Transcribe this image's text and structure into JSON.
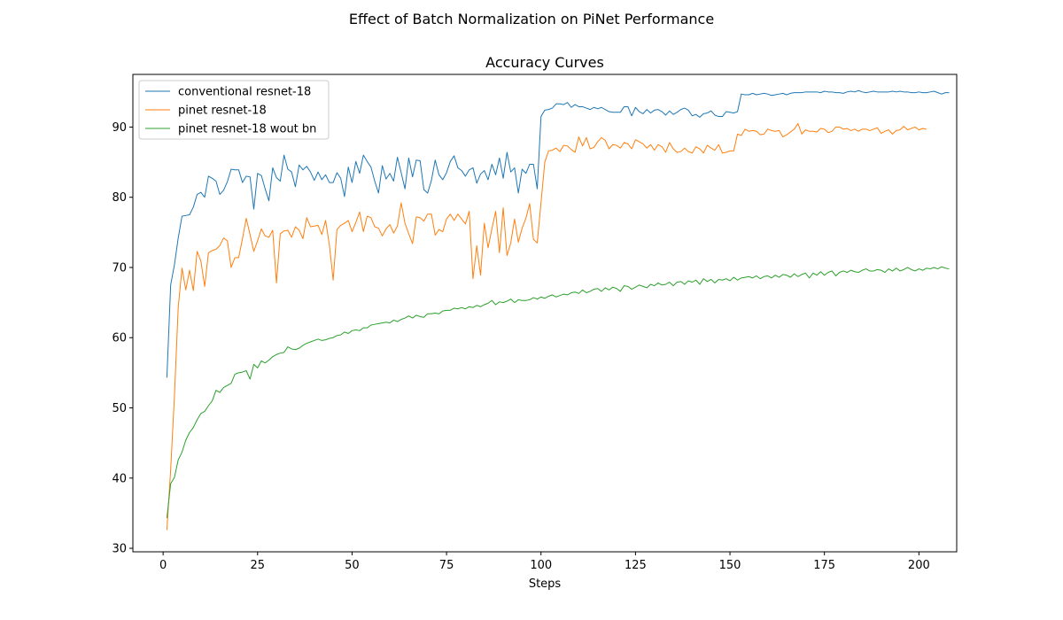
{
  "figure": {
    "suptitle": "Effect of Batch Normalization on PiNet Performance"
  },
  "chart_data": {
    "type": "line",
    "title": "Accuracy Curves",
    "xlabel": "Steps",
    "ylabel": "",
    "xlim": [
      -8,
      210
    ],
    "ylim": [
      29.5,
      97.5
    ],
    "xticks": [
      0,
      25,
      50,
      75,
      100,
      125,
      150,
      175,
      200
    ],
    "yticks": [
      30,
      40,
      50,
      60,
      70,
      80,
      90
    ],
    "grid": false,
    "legend_position": "upper left",
    "x_start": 1,
    "x_step": 1,
    "series": [
      {
        "name": "conventional resnet-18",
        "color": "#1f77b4",
        "values": [
          54.3,
          67.5,
          70.4,
          74.2,
          77.3,
          77.4,
          77.5,
          78.6,
          80.4,
          80.7,
          80.0,
          83.0,
          82.7,
          82.3,
          80.4,
          81.0,
          82.2,
          84.0,
          83.9,
          83.9,
          82.1,
          83.0,
          82.9,
          78.3,
          83.4,
          83.1,
          81.2,
          79.5,
          84.2,
          82.8,
          82.3,
          86.0,
          84.0,
          83.6,
          81.5,
          84.6,
          83.9,
          84.4,
          83.6,
          82.4,
          83.6,
          82.5,
          83.2,
          82.1,
          82.1,
          83.5,
          82.7,
          80.1,
          84.3,
          82.1,
          85.1,
          83.4,
          86.0,
          85.1,
          84.3,
          82.3,
          80.6,
          84.5,
          82.6,
          83.4,
          82.3,
          85.7,
          83.5,
          81.2,
          85.6,
          82.9,
          85.3,
          85.2,
          81.1,
          80.6,
          82.4,
          85.3,
          83.2,
          82.5,
          83.5,
          85.1,
          85.9,
          84.2,
          83.8,
          83.0,
          83.9,
          84.2,
          82.0,
          83.3,
          83.8,
          82.5,
          84.7,
          83.2,
          85.6,
          82.7,
          86.4,
          83.6,
          84.2,
          80.6,
          84.0,
          83.4,
          84.7,
          84.7,
          81.2,
          91.5,
          92.4,
          92.5,
          92.7,
          93.3,
          93.3,
          93.2,
          93.5,
          92.8,
          93.2,
          92.9,
          92.9,
          92.7,
          92.5,
          92.8,
          92.6,
          92.8,
          92.5,
          92.2,
          92.1,
          92.1,
          92.1,
          92.9,
          92.9,
          91.6,
          92.8,
          92.2,
          91.9,
          92.5,
          92.0,
          92.4,
          92.5,
          92.2,
          91.7,
          92.3,
          91.8,
          92.1,
          92.5,
          92.7,
          92.4,
          91.6,
          91.8,
          91.4,
          91.9,
          92.0,
          92.3,
          91.7,
          91.5,
          91.5,
          92.2,
          92.1,
          92.0,
          92.2,
          94.7,
          94.6,
          94.6,
          94.8,
          94.6,
          94.7,
          94.8,
          94.7,
          94.5,
          94.6,
          94.7,
          94.8,
          94.6,
          94.8,
          94.9,
          94.9,
          94.9,
          95.0,
          95.0,
          95.0,
          95.0,
          94.9,
          95.1,
          95.0,
          95.0,
          94.9,
          94.9,
          94.8,
          95.0,
          95.1,
          95.0,
          95.2,
          95.0,
          94.9,
          95.0,
          95.1,
          95.0,
          95.0,
          95.0,
          95.0,
          95.1,
          95.0,
          95.1,
          95.0,
          95.0,
          94.9,
          94.9,
          95.0,
          94.9,
          94.9,
          95.0,
          95.1,
          94.9,
          94.7,
          94.9,
          94.9
        ]
      },
      {
        "name": "pinet resnet-18",
        "color": "#ff7f0e",
        "values": [
          32.6,
          41.2,
          51.7,
          64.3,
          69.9,
          66.8,
          69.6,
          66.7,
          72.3,
          70.9,
          67.3,
          72.1,
          72.4,
          72.6,
          73.1,
          74.2,
          73.8,
          70.0,
          71.4,
          71.4,
          74.1,
          77.0,
          74.7,
          72.3,
          73.8,
          75.5,
          74.5,
          74.3,
          75.3,
          67.8,
          74.8,
          75.2,
          75.3,
          74.3,
          75.8,
          75.3,
          74.1,
          77.1,
          75.8,
          75.9,
          76.0,
          74.7,
          76.7,
          73.2,
          68.2,
          75.4,
          76.0,
          76.3,
          76.7,
          75.1,
          76.4,
          77.9,
          75.1,
          77.3,
          77.1,
          75.8,
          75.6,
          74.5,
          75.5,
          76.1,
          74.9,
          75.9,
          79.2,
          76.3,
          74.8,
          73.4,
          77.2,
          77.1,
          76.6,
          77.6,
          77.6,
          74.6,
          75.4,
          75.1,
          76.9,
          77.6,
          76.7,
          77.6,
          76.9,
          76.2,
          78.0,
          68.4,
          73.1,
          68.9,
          76.3,
          72.8,
          75.5,
          78.0,
          72.1,
          78.5,
          71.7,
          73.5,
          76.9,
          73.6,
          75.6,
          77.0,
          79.1,
          74.0,
          73.5,
          79.2,
          85.0,
          86.6,
          86.7,
          87.0,
          86.5,
          87.4,
          87.3,
          86.8,
          86.4,
          88.6,
          87.3,
          88.5,
          86.9,
          87.1,
          87.9,
          88.5,
          88.1,
          86.9,
          87.5,
          87.4,
          87.0,
          87.8,
          87.6,
          86.9,
          88.2,
          87.9,
          87.6,
          87.0,
          87.5,
          86.7,
          87.5,
          87.2,
          86.4,
          87.8,
          86.9,
          86.4,
          86.5,
          87.0,
          86.5,
          86.3,
          87.2,
          86.9,
          86.3,
          87.4,
          87.0,
          86.7,
          87.5,
          86.3,
          86.4,
          86.6,
          86.6,
          89.0,
          88.8,
          89.7,
          89.4,
          89.5,
          89.4,
          88.9,
          89.0,
          89.7,
          89.5,
          89.4,
          89.5,
          88.6,
          88.9,
          89.3,
          89.7,
          90.5,
          89.0,
          89.6,
          89.4,
          89.4,
          89.3,
          89.8,
          89.7,
          89.2,
          89.4,
          90.0,
          90.0,
          89.7,
          89.8,
          89.5,
          89.7,
          89.4,
          89.7,
          89.7,
          89.5,
          89.7,
          89.9,
          89.1,
          89.4,
          89.6,
          89.0,
          89.5,
          89.6,
          90.1,
          89.6,
          89.8,
          90.0,
          89.6,
          89.8,
          89.7
        ]
      },
      {
        "name": "pinet resnet-18 wout bn",
        "color": "#2ca02c",
        "values": [
          34.3,
          39.2,
          40.1,
          42.6,
          43.7,
          45.4,
          46.5,
          47.2,
          48.3,
          49.2,
          49.5,
          50.3,
          51.0,
          52.5,
          52.2,
          52.9,
          53.2,
          53.5,
          54.8,
          55.0,
          55.1,
          55.3,
          54.1,
          56.2,
          55.7,
          56.7,
          56.4,
          56.8,
          57.3,
          57.6,
          57.8,
          57.9,
          58.7,
          58.4,
          58.3,
          58.5,
          58.9,
          59.2,
          59.4,
          59.6,
          59.8,
          59.6,
          59.7,
          59.9,
          60.0,
          60.3,
          60.4,
          60.8,
          60.6,
          61.0,
          61.1,
          61.0,
          61.4,
          61.4,
          61.8,
          61.9,
          62.0,
          62.1,
          62.2,
          62.1,
          62.5,
          62.3,
          62.6,
          62.8,
          63.1,
          62.8,
          63.2,
          63.0,
          62.9,
          63.4,
          63.4,
          63.5,
          63.4,
          63.8,
          63.9,
          63.9,
          64.2,
          64.1,
          64.3,
          64.1,
          64.4,
          64.3,
          64.6,
          64.4,
          64.7,
          64.9,
          65.3,
          64.7,
          65.1,
          65.0,
          65.2,
          65.5,
          65.0,
          65.4,
          65.3,
          65.3,
          65.4,
          65.7,
          65.5,
          65.8,
          65.6,
          65.9,
          66.1,
          65.8,
          66.0,
          66.2,
          66.1,
          66.4,
          66.5,
          66.3,
          66.8,
          66.4,
          66.6,
          66.9,
          67.0,
          66.6,
          67.1,
          66.8,
          67.2,
          67.0,
          66.6,
          67.4,
          67.3,
          66.9,
          67.2,
          67.5,
          67.3,
          67.1,
          67.6,
          67.4,
          67.8,
          67.5,
          67.6,
          67.9,
          67.4,
          67.9,
          68.0,
          67.6,
          68.1,
          67.9,
          68.2,
          67.6,
          68.4,
          68.0,
          68.3,
          67.8,
          68.3,
          68.2,
          68.4,
          68.1,
          68.6,
          68.2,
          68.5,
          68.6,
          68.7,
          68.5,
          68.8,
          68.4,
          68.7,
          68.8,
          68.5,
          68.9,
          68.6,
          69.0,
          68.9,
          68.6,
          69.1,
          68.7,
          69.0,
          69.2,
          68.5,
          69.2,
          68.9,
          69.4,
          68.9,
          69.3,
          69.5,
          68.8,
          69.3,
          69.5,
          69.3,
          69.6,
          69.4,
          69.3,
          69.6,
          69.8,
          69.5,
          69.5,
          69.7,
          69.6,
          69.3,
          69.8,
          69.5,
          69.9,
          69.5,
          69.7,
          70.0,
          69.7,
          69.5,
          69.8,
          69.6,
          69.9,
          69.8,
          70.0,
          69.8,
          70.1,
          69.9,
          69.8
        ]
      }
    ]
  }
}
